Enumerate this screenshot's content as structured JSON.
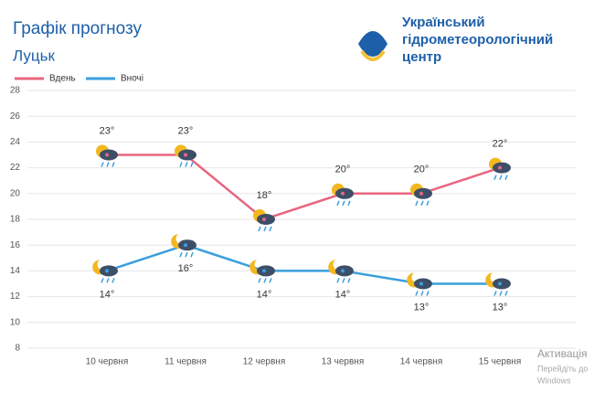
{
  "header": {
    "title": "Графік прогнозу",
    "city": "Луцьк",
    "org_line1": "Український",
    "org_line2": "гідрометеорологічний",
    "org_line3": "центр"
  },
  "chart_data": {
    "type": "line",
    "categories": [
      "10 червня",
      "11 червня",
      "12 червня",
      "13 червня",
      "14 червня",
      "15 червня"
    ],
    "series": [
      {
        "name": "Вдень",
        "color": "#e8657f",
        "values": [
          23,
          23,
          18,
          20,
          20,
          22
        ],
        "value_labels": [
          "23°",
          "23°",
          "18°",
          "20°",
          "20°",
          "22°"
        ]
      },
      {
        "name": "Вночі",
        "color": "#3a9fdc",
        "values": [
          14,
          16,
          14,
          14,
          13,
          13
        ],
        "value_labels": [
          "14°",
          "16°",
          "14°",
          "14°",
          "13°",
          "13°"
        ]
      }
    ],
    "ylim": [
      8,
      28
    ],
    "yticks": [
      8,
      10,
      12,
      14,
      16,
      18,
      20,
      22,
      24,
      26,
      28
    ],
    "grid": true
  },
  "watermark": {
    "line1": "Активація",
    "line2": "Перейдіть до",
    "line3": "Windows"
  }
}
